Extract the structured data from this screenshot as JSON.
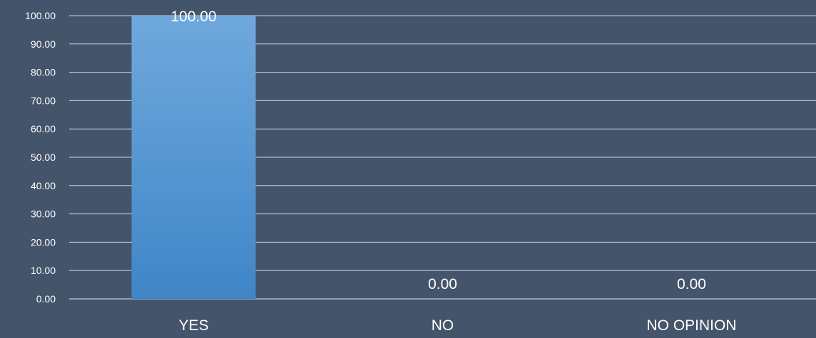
{
  "chart_data": {
    "type": "bar",
    "categories": [
      "YES",
      "NO",
      "NO OPINION"
    ],
    "values": [
      100.0,
      0.0,
      0.0
    ],
    "data_labels": [
      "100.00",
      "0.00",
      "0.00"
    ],
    "ylim": [
      0,
      100
    ],
    "y_ticks": [
      "0.00",
      "10.00",
      "20.00",
      "30.00",
      "40.00",
      "50.00",
      "60.00",
      "70.00",
      "80.00",
      "90.00",
      "100.00"
    ],
    "grid": true,
    "legend": "none",
    "colors": {
      "background": "#44546a",
      "bar_top": "#6fa8dc",
      "bar_bottom": "#3f86c8",
      "gridline": "#ffffff",
      "text": "#ffffff"
    }
  }
}
